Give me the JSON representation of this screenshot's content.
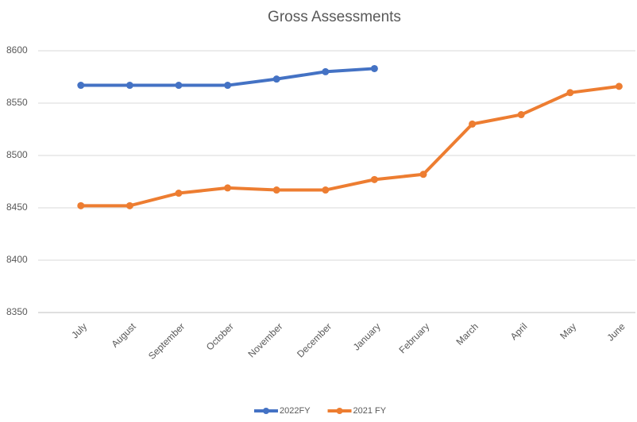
{
  "chart_data": {
    "type": "line",
    "title": "Gross Assessments",
    "categories": [
      "July",
      "August",
      "September",
      "October",
      "November",
      "December",
      "January",
      "February",
      "March",
      "April",
      "May",
      "June"
    ],
    "series": [
      {
        "name": "2022FY",
        "color": "#4472c4",
        "values": [
          8567,
          8567,
          8567,
          8567,
          8573,
          8580,
          8583,
          null,
          null,
          null,
          null,
          null
        ]
      },
      {
        "name": "2021 FY",
        "color": "#ed7d31",
        "values": [
          8452,
          8452,
          8464,
          8469,
          8467,
          8467,
          8477,
          8482,
          8530,
          8539,
          8560,
          8566
        ]
      }
    ],
    "ylim": [
      8350,
      8600
    ],
    "yticks": [
      8350,
      8400,
      8450,
      8500,
      8550,
      8600
    ],
    "grid": true,
    "legend": "bottom"
  }
}
